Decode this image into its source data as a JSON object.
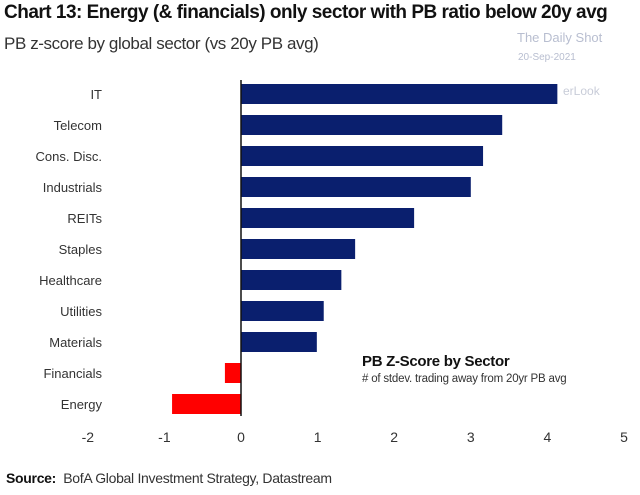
{
  "chart_data": {
    "type": "bar",
    "orientation": "horizontal",
    "title": "Chart 13: Energy (& financials) only sector with PB ratio below 20y avg",
    "subtitle": "PB z-score by global sector (vs 20y PB avg)",
    "categories": [
      "IT",
      "Telecom",
      "Cons. Disc.",
      "Industrials",
      "REITs",
      "Staples",
      "Healthcare",
      "Utilities",
      "Materials",
      "Financials",
      "Energy"
    ],
    "series": [
      {
        "name": "PB Z-Score by Sector",
        "values": [
          4.13,
          3.41,
          3.16,
          3.0,
          2.26,
          1.49,
          1.31,
          1.08,
          0.99,
          -0.21,
          -0.9
        ]
      }
    ],
    "legend_subtitle": "# of stdev. trading away from 20yr PB avg",
    "xlim": [
      -2,
      5
    ],
    "xticks": [
      -2,
      -1,
      0,
      1,
      2,
      3,
      4,
      5
    ],
    "grid": false,
    "legend_placement": "bottom-right",
    "colors": {
      "positive": "#0a1f6e",
      "negative": "#ff0000"
    }
  },
  "source_label": "Source:",
  "source_text": "BofA Global Investment Strategy, Datastream",
  "watermark": {
    "line1": "The Daily Shot",
    "line2": "20-Sep-2021",
    "line3": "erLook"
  }
}
